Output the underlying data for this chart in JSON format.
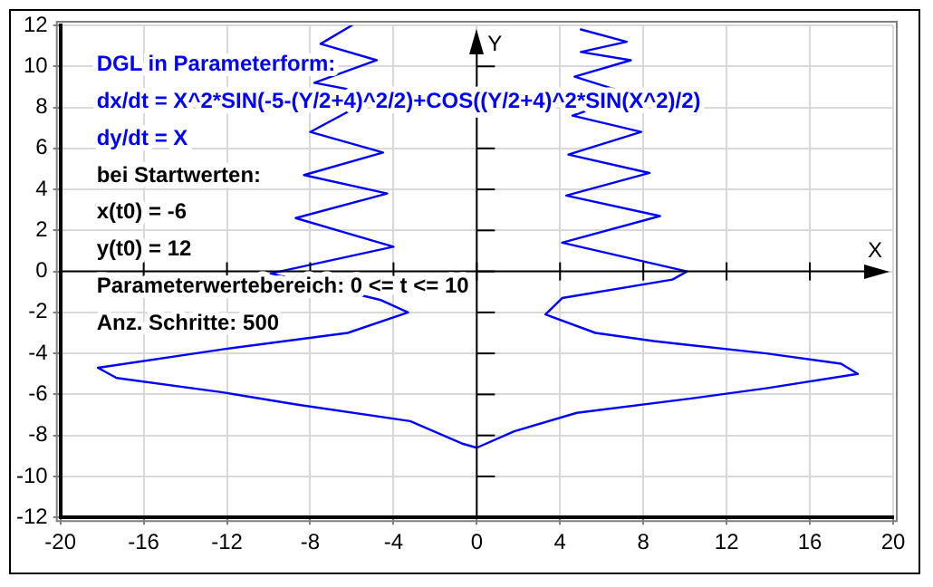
{
  "chart_data": {
    "type": "line",
    "xlabel": "X",
    "ylabel": "Y",
    "annotations": [
      "DGL in Parameterform:",
      "dx/dt = X^2*SIN(-5-(Y/2+4)^2/2)+COS((Y/2+4)^2*SIN(X^2)/2)",
      "dy/dt = X",
      "bei Startwerten:",
      "x(t0) = -6",
      "y(t0) = 12",
      "Parameterwertebereich: 0 <= t <= 10",
      "Anz. Schritte: 500"
    ],
    "series": [
      {
        "color": "#0000ff",
        "x": [
          -6,
          -7.5,
          -4.8,
          -7.8,
          -4.7,
          -8.0,
          -4.5,
          -8.3,
          -4.3,
          -8.7,
          -4.0,
          -9.9,
          -4.6,
          -3.3,
          -6.2,
          -12.2,
          -18.2,
          -17.3,
          -12.2,
          -8.6,
          -3.2,
          -0.7,
          0,
          1.8,
          4.8,
          10.3,
          13.9,
          18.3,
          17.5,
          13.9,
          8.5,
          5.7,
          3.3,
          4.1,
          9.4,
          10.1,
          4.1,
          8.8,
          4.3,
          8.3,
          4.4,
          7.9,
          4.6,
          7.5,
          4.7,
          7.4,
          5.0,
          7.2,
          5.0
        ],
        "values": [
          12,
          11.1,
          10.3,
          9.2,
          8.6,
          6.8,
          5.8,
          4.7,
          3.8,
          2.6,
          1.2,
          -0.1,
          -1.4,
          -2.0,
          -3.0,
          -3.8,
          -4.7,
          -5.2,
          -5.9,
          -6.5,
          -7.3,
          -8.4,
          -8.6,
          -7.8,
          -6.9,
          -6.2,
          -5.7,
          -5.0,
          -4.5,
          -4.0,
          -3.4,
          -3.0,
          -2.1,
          -1.3,
          -0.4,
          0,
          1.4,
          2.7,
          3.7,
          4.8,
          5.7,
          6.8,
          7.6,
          8.6,
          9.5,
          10.3,
          10.7,
          11.2,
          11.8
        ]
      }
    ],
    "xlim": [
      -20,
      20
    ],
    "ylim": [
      -12,
      12
    ],
    "xticks": [
      -20,
      -16,
      -12,
      -8,
      -4,
      0,
      4,
      8,
      12,
      16,
      20
    ],
    "yticks": [
      -12,
      -10,
      -8,
      -6,
      -4,
      -2,
      0,
      2,
      4,
      6,
      8,
      10,
      12
    ],
    "grid": true,
    "legend": false,
    "marker": "none",
    "line_style": "solid"
  }
}
